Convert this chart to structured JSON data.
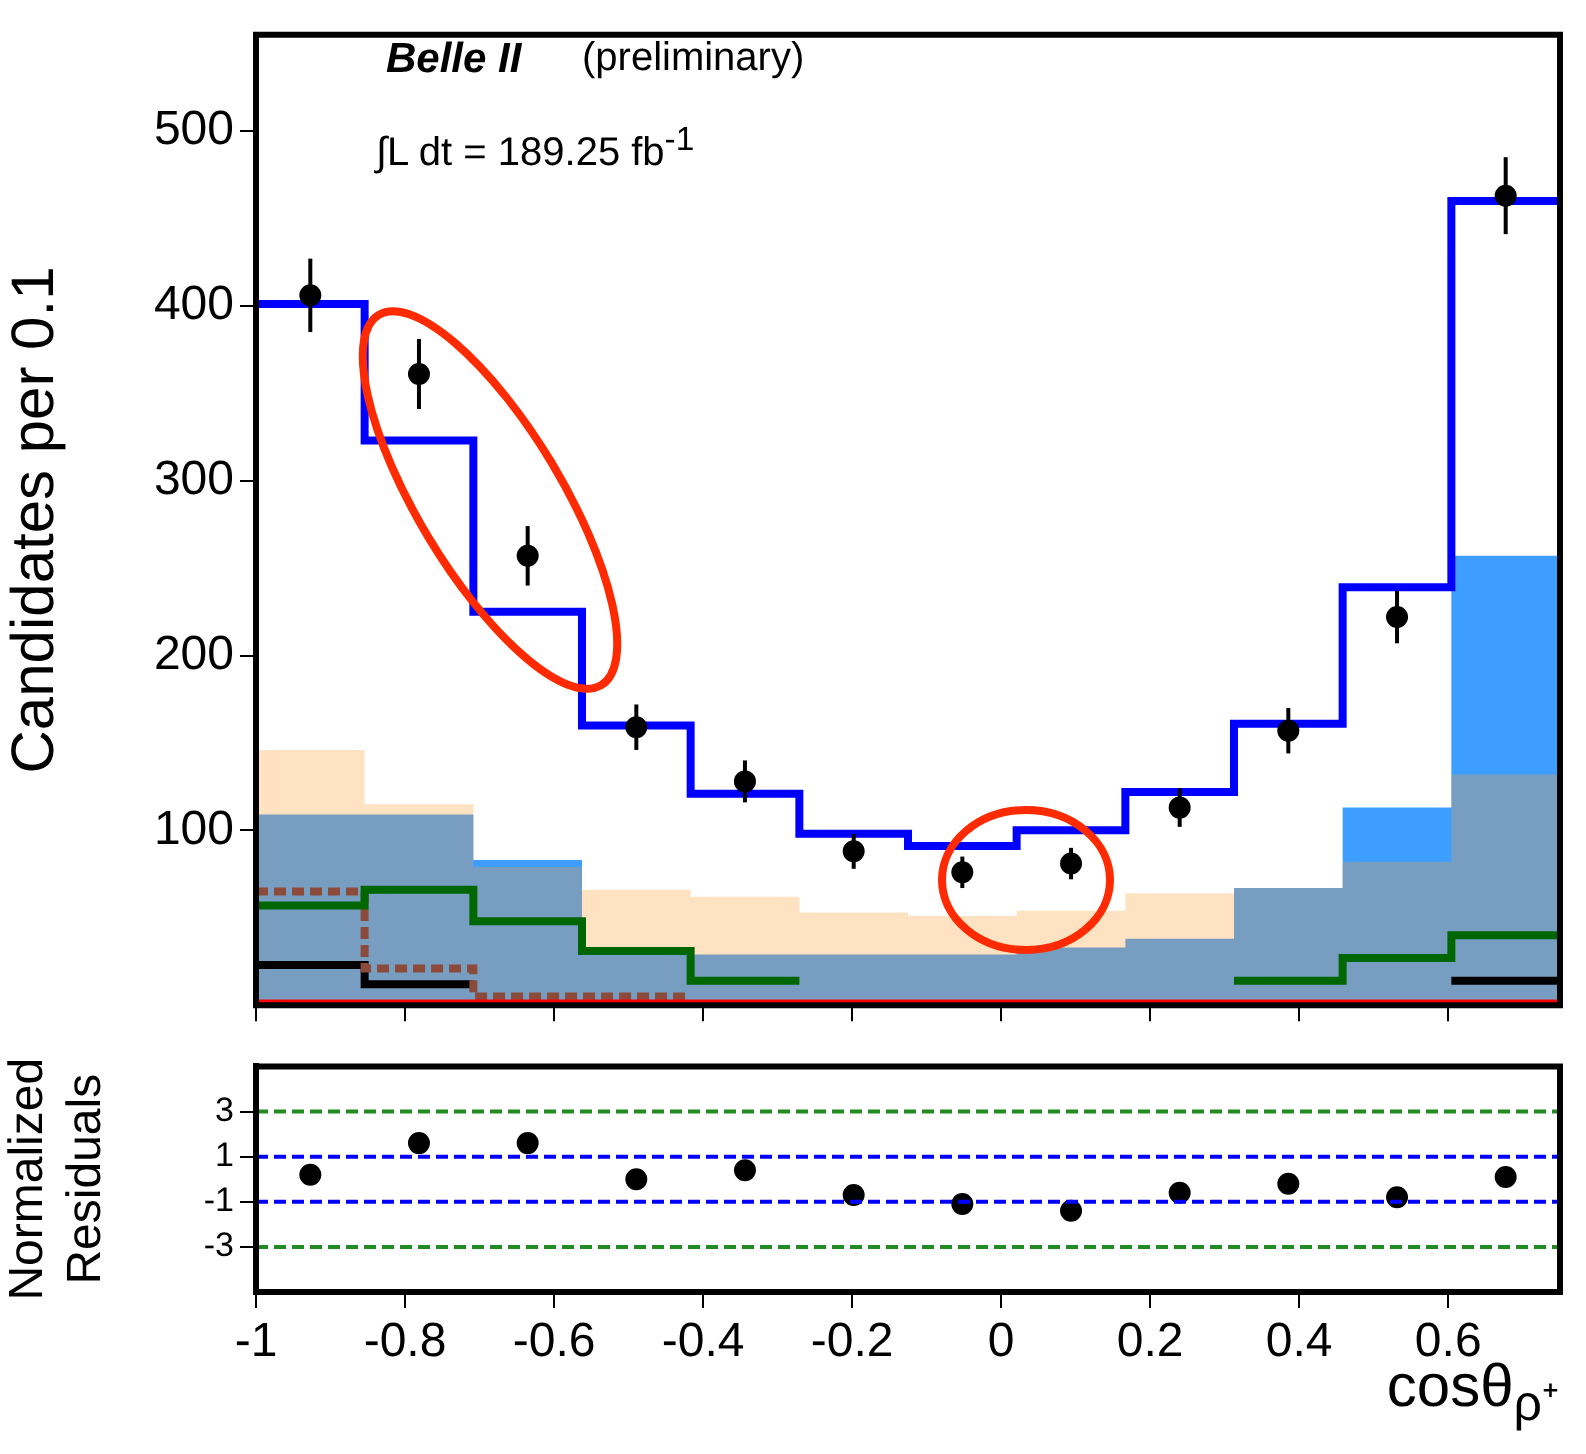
{
  "chart_data": [
    {
      "type": "histogram",
      "ylabel": "Candidates per 0.1",
      "annotations": [
        "Belle II",
        "(preliminary)",
        "∫L dt = 189.25 fb$^{-1}$"
      ],
      "bins": [
        -1,
        -0.8542,
        -0.7083,
        -0.5625,
        -0.4167,
        -0.2708,
        -0.125,
        0.0208,
        0.1667,
        0.3125,
        0.4583,
        0.6042,
        0.75
      ],
      "xlim": [
        -1,
        0.75
      ],
      "xticks": [
        -1,
        -0.8,
        -0.6,
        -0.4,
        -0.2,
        0,
        0.2,
        0.4,
        0.6
      ],
      "ylim": [
        0,
        555
      ],
      "yticks": [
        100,
        200,
        300,
        400,
        500
      ],
      "tick_labels": "y",
      "grid": false,
      "series": [
        {
          "color": "#3399ff",
          "values": [
            109,
            109,
            83,
            32,
            29,
            29,
            29,
            33,
            38,
            67,
            113,
            257
          ]
        },
        {
          "color": "#ffa033",
          "values": [
            146,
            115,
            79,
            66,
            62,
            53,
            51,
            54,
            64,
            67,
            82,
            132
          ]
        },
        {
          "type": "step",
          "color": "#000000",
          "x": [
            -1,
            -0.8542,
            -0.7083,
            -0.5625,
            -0.4167,
            -0.2708,
            -0.125,
            0.0208,
            0.1667,
            0.3125,
            0.4583,
            0.6042,
            0.75
          ],
          "values": [
            23,
            12,
            12,
            null,
            null,
            null,
            null,
            null,
            null,
            null,
            null,
            14,
            14
          ]
        },
        {
          "type": "step",
          "color": "#8b4a3a",
          "line_style": "dashed",
          "x": [
            -1,
            -0.8542,
            -0.7083,
            -0.5625,
            -0.4167
          ],
          "values": [
            65,
            21,
            5,
            5,
            5
          ]
        },
        {
          "type": "step",
          "color": "#006600",
          "x": [
            -1,
            -0.8542,
            -0.7083,
            -0.5625,
            -0.4167,
            -0.2708,
            -0.125,
            0.0208,
            0.1667,
            0.3125,
            0.4583,
            0.6042,
            0.75
          ],
          "values": [
            57,
            66,
            48,
            31,
            14,
            14,
            null,
            null,
            null,
            14,
            27,
            40,
            40
          ]
        },
        {
          "type": "step",
          "color": "#ff0000",
          "x": [
            -1,
            -0.8542,
            -0.7083,
            -0.5625,
            -0.4167,
            -0.2708,
            -0.125,
            0.0208,
            0.1667,
            0.3125,
            0.4583,
            0.6042,
            0.75
          ],
          "values": [
            1,
            1,
            1,
            1,
            1,
            1,
            1,
            1,
            1,
            1,
            1,
            1,
            1
          ]
        },
        {
          "type": "step",
          "color": "#0000ff",
          "x": [
            -1,
            -0.8542,
            -0.7083,
            -0.5625,
            -0.4167,
            -0.2708,
            -0.125,
            0.0208,
            0.1667,
            0.3125,
            0.4583,
            0.6042,
            0.75
          ],
          "values": [
            401,
            323,
            225,
            160,
            121,
            98,
            91,
            100,
            122,
            161,
            239,
            460,
            460
          ]
        },
        {
          "type": "scatter",
          "color": "#000000",
          "marker": "circle",
          "x": [
            -0.9271,
            -0.7813,
            -0.6354,
            -0.4896,
            -0.3438,
            -0.1979,
            -0.0521,
            0.0938,
            0.2396,
            0.3854,
            0.5313,
            0.6771
          ],
          "values": [
            406,
            361,
            257,
            159,
            128,
            88,
            76,
            81,
            113,
            157,
            222,
            463
          ],
          "errors": [
            21,
            20,
            17,
            13,
            12,
            10,
            9,
            9,
            11,
            13,
            15,
            22
          ]
        }
      ]
    },
    {
      "type": "scatter",
      "ylabel": "Normalized Residuals",
      "xlabel": "cosθ$_{ρ⁺}$",
      "x": [
        -0.9271,
        -0.7813,
        -0.6354,
        -0.4896,
        -0.3438,
        -0.1979,
        -0.0521,
        0.0938,
        0.2396,
        0.3854,
        0.5313,
        0.6771
      ],
      "xlim": [
        -1,
        0.75
      ],
      "xticks": [
        -1,
        -0.8,
        -0.6,
        -0.4,
        -0.2,
        0,
        0.2,
        0.4,
        0.6
      ],
      "ylim": [
        -5,
        5
      ],
      "yticks": [
        -3,
        -1,
        1,
        3
      ],
      "grid": false,
      "marker": "circle",
      "series": [
        {
          "color": "#000000",
          "values": [
            0.2,
            1.6,
            1.6,
            0,
            0.4,
            -0.7,
            -1.1,
            -1.4,
            -0.6,
            -0.2,
            -0.8,
            0.1
          ]
        }
      ],
      "ref_lines": [
        {
          "axis": "y",
          "value": 3,
          "color": "#228b22",
          "line_style": "dashed"
        },
        {
          "axis": "y",
          "value": 1,
          "color": "#0000ff",
          "line_style": "dashed"
        },
        {
          "axis": "y",
          "value": -1,
          "color": "#0000ff",
          "line_style": "dashed"
        },
        {
          "axis": "y",
          "value": -3,
          "color": "#228b22",
          "line_style": "dashed"
        }
      ]
    }
  ]
}
